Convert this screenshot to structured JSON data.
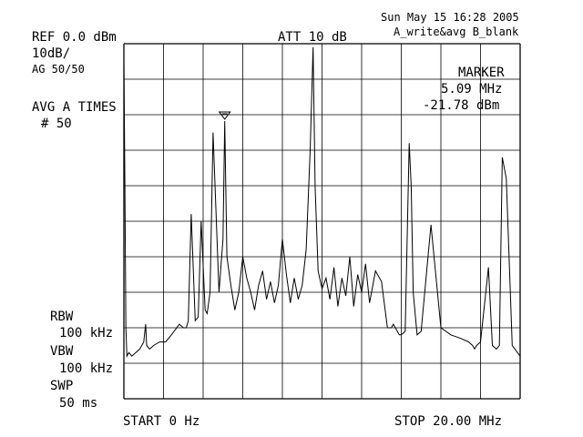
{
  "header": {
    "datetime": "Sun May 15 16:28 2005",
    "trace_info": "A_write&avg B_blank",
    "reference_level": "REF 0.0 dBm",
    "scale": "10dB/",
    "average_count": "AG 50/50",
    "attenuation": "ATT 10 dB",
    "average_mode": "AVG A TIMES",
    "average_times": "# 50"
  },
  "marker": {
    "label": "MARKER",
    "frequency": "5.09 MHz",
    "level": "-21.78 dBm",
    "frequency_mhz": 5.09,
    "level_dbm": -21.78
  },
  "settings": {
    "rbw_label": "RBW",
    "rbw_value": "100 kHz",
    "vbw_label": "VBW",
    "vbw_value": "100 kHz",
    "sweep_label": "SWP",
    "sweep_value": "50 ms"
  },
  "footer": {
    "start": "START 0 Hz",
    "stop": "STOP 20.00 MHz"
  },
  "chart_data": {
    "type": "line",
    "x_unit": "MHz",
    "y_unit": "dBm",
    "xlim": [
      0,
      20
    ],
    "ylim": [
      -100,
      0
    ],
    "grid": true,
    "reference_level_dbm": 0,
    "db_per_division": 10,
    "series": [
      {
        "x": [
          0.0,
          0.05,
          0.1,
          0.15,
          0.25,
          0.4,
          0.6,
          0.8,
          1.0,
          1.1,
          1.15,
          1.3,
          1.5,
          1.8,
          2.1,
          2.4,
          2.8,
          3.0,
          3.15,
          3.25,
          3.4,
          3.6,
          3.75,
          3.9,
          4.1,
          4.2,
          4.35,
          4.5,
          4.8,
          5.0,
          5.09,
          5.2,
          5.4,
          5.6,
          5.8,
          6.0,
          6.2,
          6.4,
          6.6,
          6.8,
          7.0,
          7.2,
          7.4,
          7.6,
          7.8,
          8.0,
          8.2,
          8.4,
          8.6,
          8.8,
          9.0,
          9.2,
          9.4,
          9.55,
          9.65,
          9.8,
          10.0,
          10.2,
          10.4,
          10.6,
          10.8,
          11.0,
          11.2,
          11.4,
          11.6,
          11.8,
          12.0,
          12.2,
          12.4,
          12.7,
          13.0,
          13.3,
          13.5,
          13.6,
          13.7,
          13.9,
          14.0,
          14.2,
          14.4,
          14.5,
          14.6,
          14.8,
          15.0,
          15.5,
          16.0,
          16.5,
          17.0,
          17.4,
          17.6,
          17.7,
          17.8,
          18.0,
          18.4,
          18.6,
          18.8,
          18.95,
          19.1,
          19.3,
          19.6,
          20.0
        ],
        "y": [
          -5,
          -40,
          -80,
          -88,
          -87,
          -88,
          -87,
          -86,
          -84,
          -79,
          -85,
          -86,
          -85,
          -84,
          -84,
          -82,
          -79,
          -80,
          -80,
          -78,
          -48,
          -78,
          -77,
          -50,
          -75,
          -76,
          -70,
          -25,
          -70,
          -55,
          -21.8,
          -60,
          -68,
          -75,
          -70,
          -60,
          -66,
          -70,
          -75,
          -68,
          -64,
          -72,
          -67,
          -73,
          -68,
          -55,
          -65,
          -73,
          -66,
          -72,
          -68,
          -58,
          -30,
          -1,
          -40,
          -64,
          -69,
          -66,
          -72,
          -63,
          -74,
          -66,
          -71,
          -60,
          -74,
          -65,
          -70,
          -62,
          -73,
          -64,
          -67,
          -80,
          -80,
          -79,
          -80,
          -82,
          -82,
          -81,
          -28,
          -40,
          -70,
          -82,
          -81,
          -51,
          -80,
          -82,
          -83,
          -84,
          -85,
          -86,
          -85,
          -84,
          -63,
          -85,
          -86,
          -85,
          -32,
          -38,
          -85,
          -88
        ]
      }
    ],
    "marker": {
      "x": 5.09,
      "y": -21.78
    }
  }
}
